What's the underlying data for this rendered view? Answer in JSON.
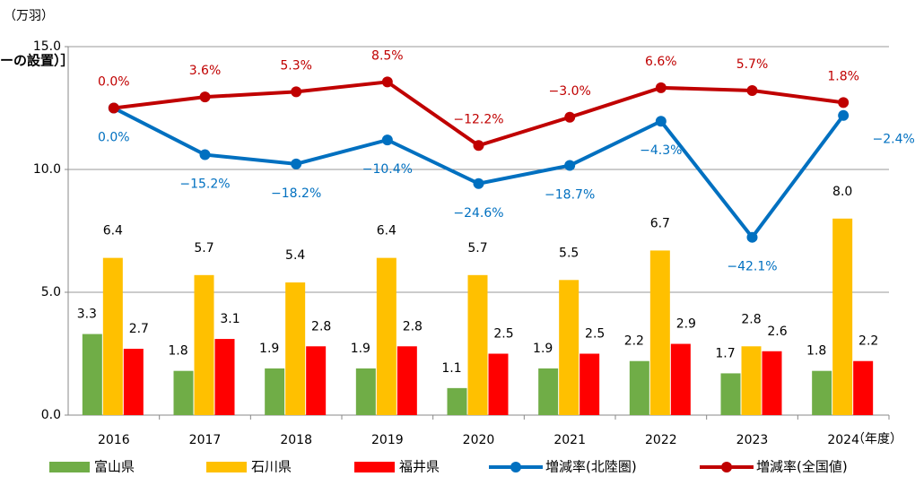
{
  "chart_data": {
    "type": "bar",
    "y_axis_label": "（万羽）",
    "x_axis_label": "（年度）",
    "annotation": "ーの設置）］",
    "categories": [
      "2016",
      "2017",
      "2018",
      "2019",
      "2020",
      "2021",
      "2022",
      "2023",
      "2024"
    ],
    "ylim": [
      0,
      15
    ],
    "yticks": [
      {
        "value": 0,
        "label": "0.0"
      },
      {
        "value": 5,
        "label": "5.0"
      },
      {
        "value": 10,
        "label": "10.0"
      },
      {
        "value": 15,
        "label": "15.0"
      }
    ],
    "y2lim": [
      -100,
      20
    ],
    "grid": true,
    "legend": "bottom",
    "series": [
      {
        "name": "富山県",
        "color": "#70ad47",
        "values": [
          3.3,
          1.8,
          1.9,
          1.9,
          1.1,
          1.9,
          2.2,
          1.7,
          1.8
        ],
        "value_labels": [
          "3.3",
          "1.8",
          "1.9",
          "1.9",
          "1.1",
          "1.9",
          "2.2",
          "1.7",
          "1.8"
        ]
      },
      {
        "name": "石川県",
        "color": "#ffc000",
        "values": [
          6.4,
          5.7,
          5.4,
          6.4,
          5.7,
          5.5,
          6.7,
          2.8,
          8.0
        ],
        "value_labels": [
          "6.4",
          "5.7",
          "5.4",
          "6.4",
          "5.7",
          "5.5",
          "6.7",
          "2.8",
          "8.0"
        ]
      },
      {
        "name": "福井県",
        "color": "#ff0000",
        "values": [
          2.7,
          3.1,
          2.8,
          2.8,
          2.5,
          2.5,
          2.9,
          2.6,
          2.2
        ],
        "value_labels": [
          "2.7",
          "3.1",
          "2.8",
          "2.8",
          "2.5",
          "2.5",
          "2.9",
          "2.6",
          "2.2"
        ]
      },
      {
        "name": "増減率(北陸圏)",
        "color": "#0070c0",
        "type": "line",
        "axis": "y2",
        "values": [
          0,
          -15.2,
          -18.2,
          -10.4,
          -24.6,
          -18.7,
          -4.3,
          -42.1,
          -2.4
        ],
        "value_labels": [
          "0.0%",
          "−15.2%",
          "−18.2%",
          "−10.4%",
          "−24.6%",
          "−18.7%",
          "−4.3%",
          "−42.1%",
          "−2.4%"
        ]
      },
      {
        "name": "増減率(全国値)",
        "color": "#c00000",
        "type": "line",
        "axis": "y2",
        "values": [
          0,
          3.6,
          5.3,
          8.5,
          -12.2,
          -3,
          6.6,
          5.7,
          1.8
        ],
        "value_labels": [
          "0.0%",
          "3.6%",
          "5.3%",
          "8.5%",
          "−12.2%",
          "−3.0%",
          "6.6%",
          "5.7%",
          "1.8%"
        ]
      }
    ]
  }
}
